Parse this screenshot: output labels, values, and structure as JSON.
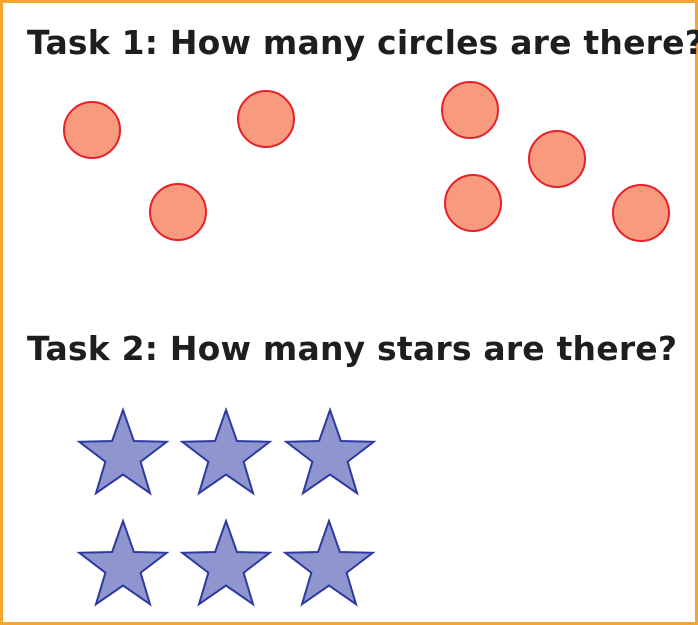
{
  "task1": {
    "title": "Task 1: How many circles are there?",
    "shape": "circle",
    "count": 7,
    "fill_color": "#f79a7e",
    "stroke_color": "#e8202a"
  },
  "task2": {
    "title": "Task 2: How many stars are there?",
    "shape": "star",
    "count": 6,
    "fill_color": "#8f96cf",
    "stroke_color": "#2e3a9e"
  },
  "frame_color": "#f5a630"
}
